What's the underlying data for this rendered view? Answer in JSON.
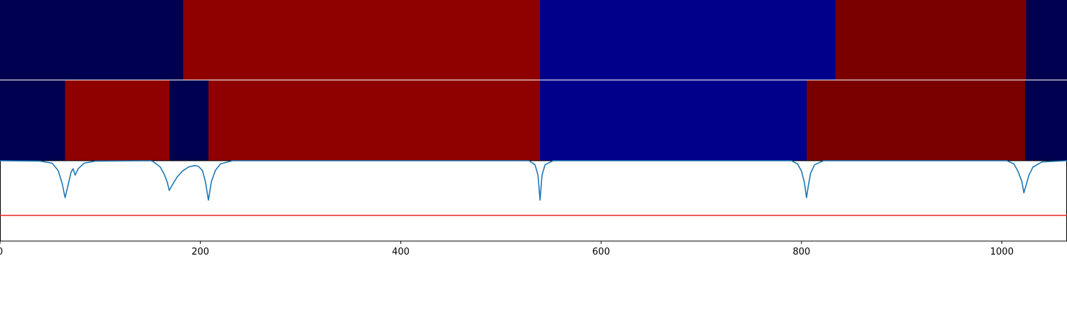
{
  "colors": {
    "background": "#ffffff",
    "segment_navy": "#000050",
    "segment_blue": "#00008a",
    "segment_red": "#8f0000",
    "segment_darkred": "#7a0000",
    "curve": "#1f77b4",
    "threshold": "#e8231c",
    "separator": "#ffffff",
    "frame": "#000000"
  },
  "chart_data": [
    {
      "type": "heatmap",
      "name_hint": "",
      "xlim": [
        0,
        1065
      ],
      "segments": [
        {
          "start": 0,
          "end": 183,
          "color_key": "segment_navy"
        },
        {
          "start": 183,
          "end": 539,
          "color_key": "segment_red"
        },
        {
          "start": 539,
          "end": 834,
          "color_key": "segment_blue"
        },
        {
          "start": 834,
          "end": 1024,
          "color_key": "segment_darkred"
        },
        {
          "start": 1024,
          "end": 1065,
          "color_key": "segment_navy"
        }
      ]
    },
    {
      "type": "heatmap",
      "xlim": [
        0,
        1065
      ],
      "segments": [
        {
          "start": 0,
          "end": 65,
          "color_key": "segment_navy"
        },
        {
          "start": 65,
          "end": 169,
          "color_key": "segment_red"
        },
        {
          "start": 169,
          "end": 208,
          "color_key": "segment_navy"
        },
        {
          "start": 208,
          "end": 539,
          "color_key": "segment_red"
        },
        {
          "start": 539,
          "end": 805,
          "color_key": "segment_blue"
        },
        {
          "start": 805,
          "end": 1023,
          "color_key": "segment_darkred"
        },
        {
          "start": 1023,
          "end": 1065,
          "color_key": "segment_navy"
        }
      ]
    },
    {
      "type": "line",
      "xlim": [
        0,
        1065
      ],
      "ylim": [
        0,
        1
      ],
      "grid": false,
      "x_ticks": [
        0,
        200,
        400,
        600,
        800,
        1000
      ],
      "x_tick_labels": [
        "0",
        "200",
        "400",
        "600",
        "800",
        "1000"
      ],
      "threshold": 0.32,
      "series": [
        {
          "points": [
            [
              0,
              1.0
            ],
            [
              40,
              0.995
            ],
            [
              52,
              0.97
            ],
            [
              58,
              0.88
            ],
            [
              62,
              0.72
            ],
            [
              65,
              0.54
            ],
            [
              68,
              0.7
            ],
            [
              71,
              0.86
            ],
            [
              73,
              0.9
            ],
            [
              75,
              0.82
            ],
            [
              78,
              0.9
            ],
            [
              84,
              0.97
            ],
            [
              95,
              0.995
            ],
            [
              150,
              1.0
            ],
            [
              152,
              0.995
            ],
            [
              155,
              0.97
            ],
            [
              160,
              0.92
            ],
            [
              164,
              0.83
            ],
            [
              167,
              0.73
            ],
            [
              169,
              0.63
            ],
            [
              172,
              0.7
            ],
            [
              177,
              0.8
            ],
            [
              182,
              0.87
            ],
            [
              188,
              0.92
            ],
            [
              194,
              0.94
            ],
            [
              198,
              0.93
            ],
            [
              202,
              0.88
            ],
            [
              205,
              0.74
            ],
            [
              208,
              0.51
            ],
            [
              211,
              0.74
            ],
            [
              215,
              0.88
            ],
            [
              220,
              0.96
            ],
            [
              232,
              1.0
            ],
            [
              528,
              1.0
            ],
            [
              534,
              0.95
            ],
            [
              537,
              0.82
            ],
            [
              539,
              0.51
            ],
            [
              541,
              0.82
            ],
            [
              544,
              0.95
            ],
            [
              552,
              1.0
            ],
            [
              790,
              1.0
            ],
            [
              796,
              0.96
            ],
            [
              800,
              0.87
            ],
            [
              803,
              0.72
            ],
            [
              805,
              0.54
            ],
            [
              807,
              0.7
            ],
            [
              809,
              0.84
            ],
            [
              813,
              0.95
            ],
            [
              822,
              1.0
            ],
            [
              1005,
              1.0
            ],
            [
              1012,
              0.96
            ],
            [
              1016,
              0.87
            ],
            [
              1020,
              0.74
            ],
            [
              1022,
              0.6
            ],
            [
              1024,
              0.69
            ],
            [
              1027,
              0.82
            ],
            [
              1031,
              0.92
            ],
            [
              1040,
              0.985
            ],
            [
              1065,
              1.0
            ]
          ]
        }
      ]
    }
  ]
}
